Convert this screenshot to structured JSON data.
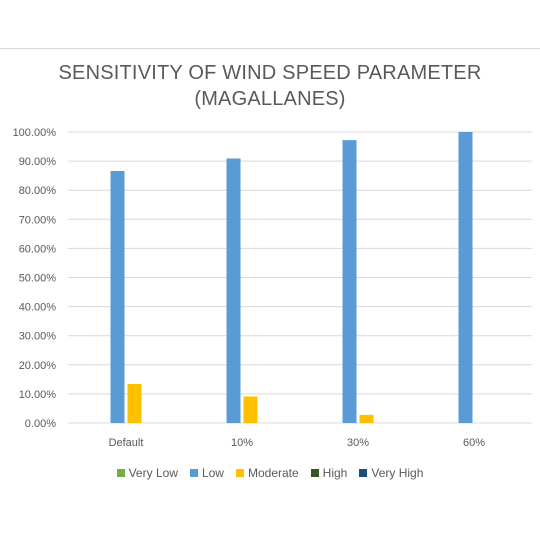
{
  "chart_data": {
    "type": "bar",
    "title_line1": "SENSITIVITY OF WIND SPEED PARAMETER",
    "title_line2": "(MAGALLANES)",
    "categories": [
      "Default",
      "10%",
      "30%",
      "60%"
    ],
    "ylim": [
      0,
      100
    ],
    "yticks": [
      "0.00%",
      "10.00%",
      "20.00%",
      "30.00%",
      "40.00%",
      "50.00%",
      "60.00%",
      "70.00%",
      "80.00%",
      "90.00%",
      "100.00%"
    ],
    "grid": true,
    "legend_placement": "bottom",
    "series": [
      {
        "name": "Very Low",
        "color": "#70ad47",
        "values": [
          0,
          0,
          0,
          0
        ]
      },
      {
        "name": "Low",
        "color": "#5b9bd5",
        "values": [
          86.6,
          90.9,
          97.2,
          100
        ]
      },
      {
        "name": "Moderate",
        "color": "#ffc000",
        "values": [
          13.4,
          9.1,
          2.8,
          0
        ]
      },
      {
        "name": "High",
        "color": "#375623",
        "values": [
          0,
          0,
          0,
          0
        ]
      },
      {
        "name": "Very High",
        "color": "#1f4e79",
        "values": [
          0,
          0,
          0,
          0
        ]
      }
    ]
  }
}
